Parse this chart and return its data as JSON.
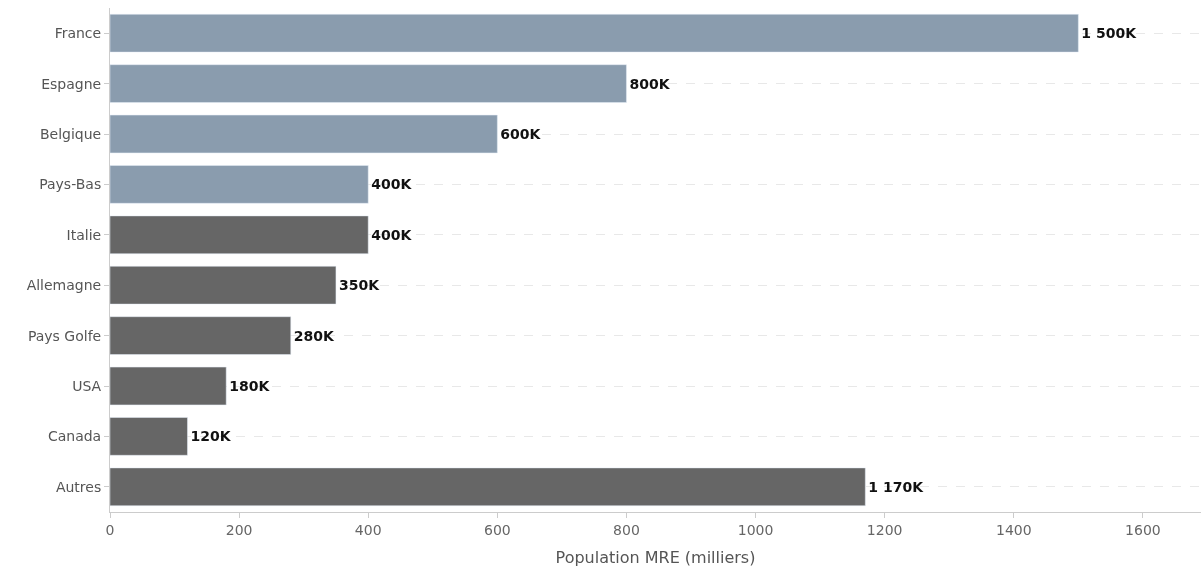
{
  "chart_data": {
    "type": "bar",
    "orientation": "horizontal",
    "xlabel": "Population MRE (milliers)",
    "categories": [
      "France",
      "Espagne",
      "Belgique",
      "Pays-Bas",
      "Italie",
      "Allemagne",
      "Pays Golfe",
      "USA",
      "Canada",
      "Autres"
    ],
    "values": [
      1500,
      800,
      600,
      400,
      400,
      350,
      280,
      180,
      120,
      1170
    ],
    "colors": [
      "#8a9cae",
      "#8a9cae",
      "#8a9cae",
      "#8a9cae",
      "#666666",
      "#666666",
      "#666666",
      "#666666",
      "#666666",
      "#666666"
    ],
    "value_labels": [
      "1 500K",
      "800K",
      "600K",
      "400K",
      "400K",
      "350K",
      "280K",
      "180K",
      "120K",
      "1 170K"
    ],
    "xlim": [
      0,
      1690
    ],
    "xticks": [
      0,
      200,
      400,
      600,
      800,
      1000,
      1200,
      1400,
      1600
    ],
    "grid": "y",
    "legend": false
  }
}
